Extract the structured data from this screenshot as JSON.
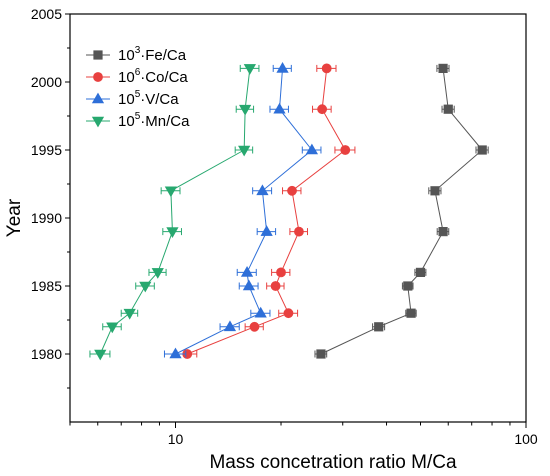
{
  "chart_data": {
    "type": "scatter",
    "title": "",
    "xlabel": "Mass concetration ratio M/Ca",
    "ylabel": "Year",
    "xscale": "log",
    "xlim": [
      5,
      100
    ],
    "ylim": [
      1975,
      2005
    ],
    "xticks": [
      {
        "value": 10,
        "label": "10"
      },
      {
        "value": 100,
        "label": "100"
      }
    ],
    "yticks": [
      {
        "value": 1980,
        "label": "1980"
      },
      {
        "value": 1985,
        "label": "1985"
      },
      {
        "value": 1990,
        "label": "1990"
      },
      {
        "value": 1995,
        "label": "1995"
      },
      {
        "value": 2000,
        "label": "2000"
      },
      {
        "value": 2005,
        "label": "2005"
      }
    ],
    "grid": false,
    "legend_position": "top-left",
    "series": [
      {
        "name": "10³·Fe/Ca",
        "name_base": "10",
        "name_exp": "3",
        "name_rest": "·Fe/Ca",
        "marker": "square",
        "color": "#555555",
        "points": [
          {
            "year": 1980,
            "value": 26,
            "err": 1.0
          },
          {
            "year": 1982,
            "value": 38,
            "err": 1.5
          },
          {
            "year": 1983,
            "value": 47,
            "err": 1.6
          },
          {
            "year": 1985,
            "value": 46,
            "err": 1.6
          },
          {
            "year": 1986,
            "value": 50,
            "err": 1.8
          },
          {
            "year": 1989,
            "value": 58,
            "err": 2.2
          },
          {
            "year": 1992,
            "value": 55,
            "err": 2.2
          },
          {
            "year": 1995,
            "value": 75,
            "err": 3.0
          },
          {
            "year": 1998,
            "value": 60,
            "err": 2.4
          },
          {
            "year": 2001,
            "value": 58,
            "err": 2.3
          }
        ]
      },
      {
        "name": "10⁶·Co/Ca",
        "name_base": "10",
        "name_exp": "6",
        "name_rest": "·Co/Ca",
        "marker": "circle",
        "color": "#e8403f",
        "points": [
          {
            "year": 1980,
            "value": 10.8,
            "err": 0.7
          },
          {
            "year": 1982,
            "value": 16.8,
            "err": 1.0
          },
          {
            "year": 1983,
            "value": 21.0,
            "err": 1.3
          },
          {
            "year": 1985,
            "value": 19.3,
            "err": 1.1
          },
          {
            "year": 1986,
            "value": 20.0,
            "err": 1.2
          },
          {
            "year": 1989,
            "value": 22.5,
            "err": 1.3
          },
          {
            "year": 1992,
            "value": 21.5,
            "err": 1.3
          },
          {
            "year": 1995,
            "value": 30.5,
            "err": 2.0
          },
          {
            "year": 1998,
            "value": 26.2,
            "err": 1.6
          },
          {
            "year": 2001,
            "value": 27.0,
            "err": 1.7
          }
        ]
      },
      {
        "name": "10⁵·V/Ca",
        "name_base": "10",
        "name_exp": "5",
        "name_rest": "·V/Ca",
        "marker": "triangle-up",
        "color": "#2e6fd8",
        "points": [
          {
            "year": 1980,
            "value": 10.0,
            "err": 0.7
          },
          {
            "year": 1982,
            "value": 14.3,
            "err": 0.9
          },
          {
            "year": 1983,
            "value": 17.5,
            "err": 1.1
          },
          {
            "year": 1985,
            "value": 16.2,
            "err": 1.0
          },
          {
            "year": 1986,
            "value": 16.0,
            "err": 1.0
          },
          {
            "year": 1989,
            "value": 18.2,
            "err": 1.1
          },
          {
            "year": 1992,
            "value": 17.7,
            "err": 1.1
          },
          {
            "year": 1995,
            "value": 24.5,
            "err": 1.5
          },
          {
            "year": 1998,
            "value": 19.8,
            "err": 1.2
          },
          {
            "year": 2001,
            "value": 20.2,
            "err": 1.2
          }
        ]
      },
      {
        "name": "10⁵·Mn/Ca",
        "name_base": "10",
        "name_exp": "5",
        "name_rest": "·Mn/Ca",
        "marker": "triangle-down",
        "color": "#27a86f",
        "points": [
          {
            "year": 1980,
            "value": 6.1,
            "err": 0.4
          },
          {
            "year": 1982,
            "value": 6.6,
            "err": 0.4
          },
          {
            "year": 1983,
            "value": 7.4,
            "err": 0.4
          },
          {
            "year": 1985,
            "value": 8.2,
            "err": 0.5
          },
          {
            "year": 1986,
            "value": 8.9,
            "err": 0.5
          },
          {
            "year": 1989,
            "value": 9.8,
            "err": 0.6
          },
          {
            "year": 1992,
            "value": 9.7,
            "err": 0.6
          },
          {
            "year": 1995,
            "value": 15.7,
            "err": 0.9
          },
          {
            "year": 1998,
            "value": 15.8,
            "err": 0.9
          },
          {
            "year": 2001,
            "value": 16.3,
            "err": 1.0
          }
        ]
      }
    ]
  }
}
